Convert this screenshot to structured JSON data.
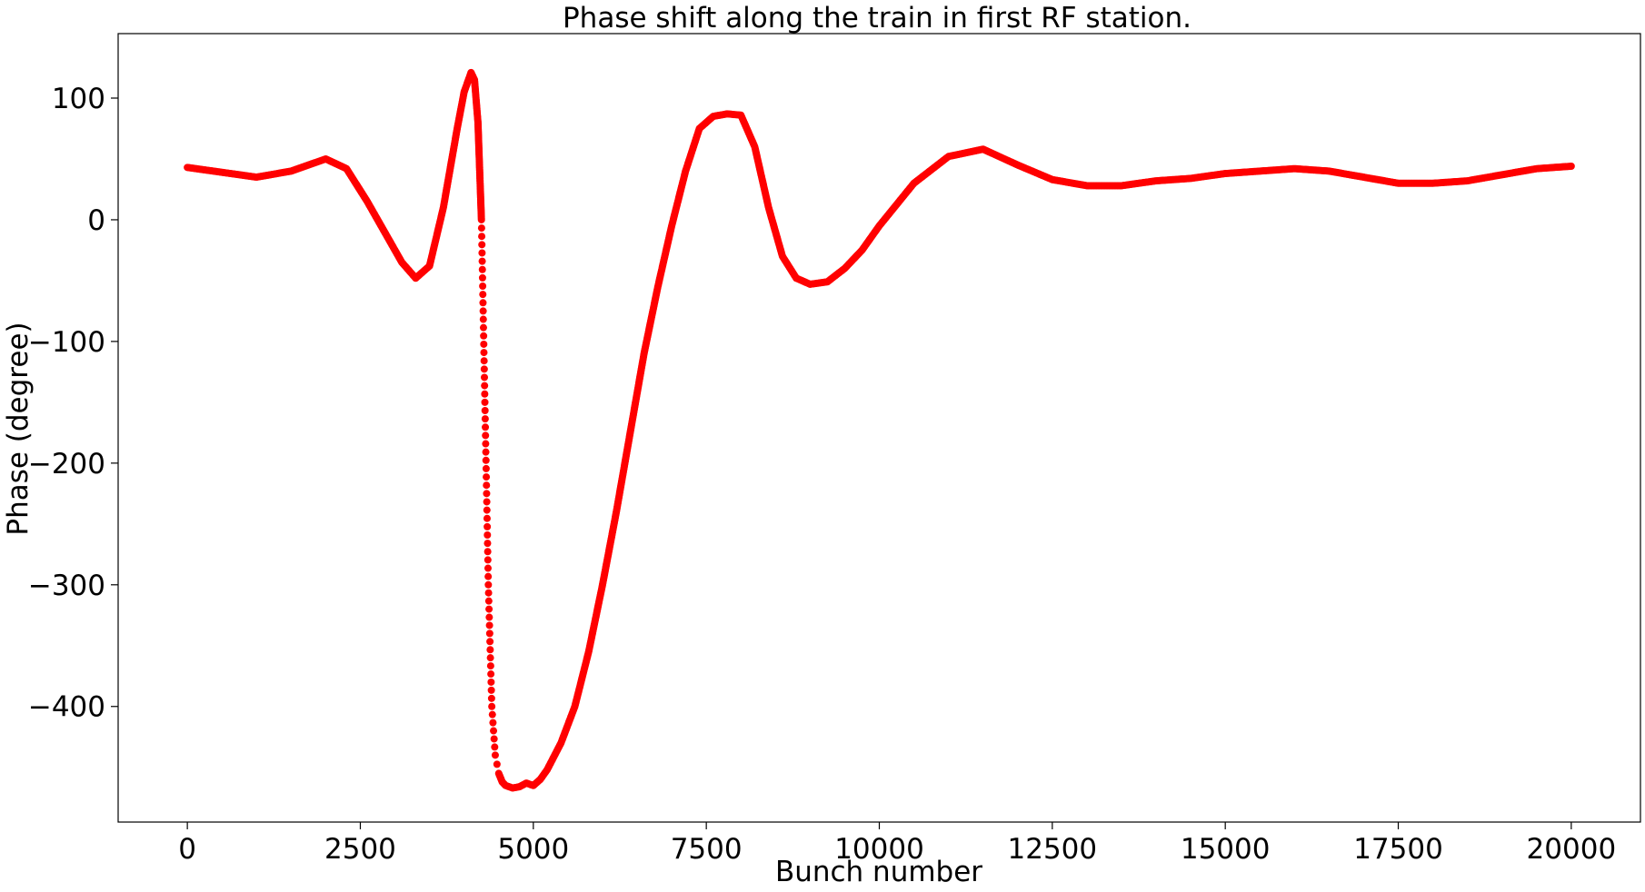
{
  "chart_data": {
    "type": "scatter",
    "title": "Phase shift along the train in first RF station.",
    "xlabel": "Bunch number",
    "ylabel": "Phase (degree)",
    "xlim": [
      -1000,
      21000
    ],
    "ylim": [
      -495,
      153
    ],
    "x_ticks": [
      0,
      2500,
      5000,
      7500,
      10000,
      12500,
      15000,
      17500,
      20000
    ],
    "x_tick_labels": [
      "0",
      "2500",
      "5000",
      "7500",
      "10000",
      "12500",
      "15000",
      "17500",
      "20000"
    ],
    "y_ticks": [
      100,
      0,
      -100,
      -200,
      -300,
      -400
    ],
    "y_tick_labels": [
      "100",
      "0",
      "−100",
      "−200",
      "−300",
      "−400"
    ],
    "grid": false,
    "legend": "none",
    "marker_color": "#ff0000",
    "series": [
      {
        "x": [
          0,
          500,
          1000,
          1500,
          2000,
          2300,
          2600,
          2900,
          3100,
          3300,
          3500,
          3700,
          3900,
          4000,
          4100,
          4150,
          4200,
          4250,
          4300,
          4350,
          4400,
          4450,
          4500,
          4550,
          4600,
          4700,
          4800,
          4900,
          5000,
          5100,
          5200,
          5400,
          5600,
          5800,
          6000,
          6200,
          6400,
          6600,
          6800,
          7000,
          7200,
          7400,
          7600,
          7800,
          8000,
          8200,
          8400,
          8600,
          8800,
          9000,
          9250,
          9500,
          9750,
          10000,
          10500,
          11000,
          11500,
          12000,
          12500,
          13000,
          13500,
          14000,
          14500,
          15000,
          15500,
          16000,
          16500,
          17000,
          17500,
          18000,
          18500,
          19000,
          19500,
          20000
        ],
        "y": [
          43,
          39,
          35,
          40,
          50,
          42,
          15,
          -15,
          -35,
          -48,
          -38,
          10,
          75,
          105,
          121,
          115,
          80,
          0,
          -150,
          -300,
          -400,
          -440,
          -455,
          -462,
          -465,
          -467,
          -466,
          -463,
          -465,
          -460,
          -452,
          -430,
          -400,
          -355,
          -300,
          -240,
          -175,
          -110,
          -55,
          -5,
          40,
          75,
          85,
          87,
          86,
          60,
          10,
          -30,
          -48,
          -53,
          -51,
          -40,
          -25,
          -5,
          30,
          52,
          58,
          45,
          33,
          28,
          28,
          32,
          34,
          38,
          40,
          42,
          40,
          35,
          30,
          30,
          32,
          37,
          42,
          44
        ]
      }
    ]
  }
}
